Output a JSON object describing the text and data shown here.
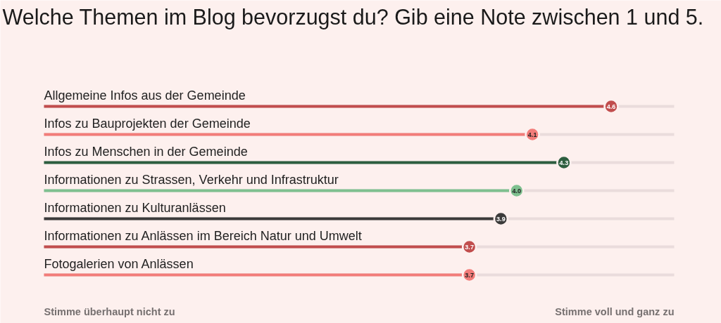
{
  "chart_data": {
    "type": "lollipop",
    "orientation": "horizontal",
    "title": "Welche Themen im Blog bevorzugst du? Gib eine Note zwischen 1 und 5.",
    "categories": [
      "Allgemeine Infos aus der Gemeinde",
      "Infos zu Bauprojekten der Gemeinde",
      "Infos zu Menschen in der Gemeinde",
      "Informationen zu Strassen, Verkehr und Infrastruktur",
      "Informationen zu Kulturanlässen",
      "Informationen zu Anlässen im Bereich Natur und Umwelt",
      "Fotogalerien von Anlässen"
    ],
    "values": [
      4.6,
      4.1,
      4.3,
      4.0,
      3.9,
      3.7,
      3.7
    ],
    "value_labels": [
      "4.6",
      "4.1",
      "4.3",
      "4.0",
      "3.9",
      "3.7",
      "3.7"
    ],
    "colors": [
      "#c14d4d",
      "#f27c79",
      "#2d5e3f",
      "#7ec08f",
      "#3b3a3a",
      "#c14d4d",
      "#f27c79"
    ],
    "xlim": [
      1,
      5
    ],
    "grid": "y",
    "annotations": [
      "Stimme überhaupt nicht zu",
      "Stimme voll und ganz zu"
    ]
  }
}
